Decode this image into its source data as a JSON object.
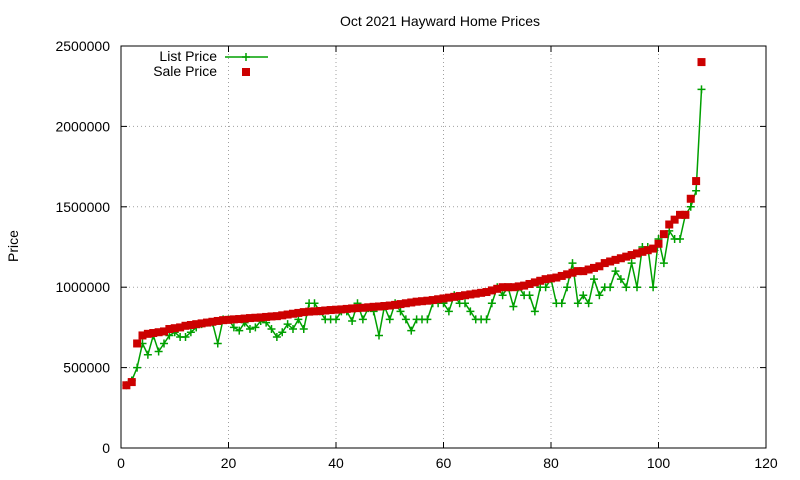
{
  "chart_data": {
    "type": "scatter",
    "title": "Oct 2021 Hayward Home Prices",
    "xlabel": "",
    "ylabel": "Price",
    "xlim": [
      0,
      120
    ],
    "ylim": [
      0,
      2500000
    ],
    "x_ticks": [
      0,
      20,
      40,
      60,
      80,
      100,
      120
    ],
    "y_ticks": [
      0,
      500000,
      1000000,
      1500000,
      2000000,
      2500000
    ],
    "x_tick_labels": [
      "0",
      "20",
      "40",
      "60",
      "80",
      "100",
      "120"
    ],
    "y_tick_labels": [
      "0",
      "500000",
      "1000000",
      "1500000",
      "2000000",
      "2500000"
    ],
    "grid": true,
    "legend_position": "top-left",
    "series": [
      {
        "name": "List Price",
        "style": "linespoints",
        "marker": "plus",
        "color": "#00a000",
        "x": [
          1,
          2,
          3,
          4,
          5,
          6,
          7,
          8,
          9,
          10,
          11,
          12,
          13,
          14,
          15,
          16,
          17,
          18,
          19,
          20,
          21,
          22,
          23,
          24,
          25,
          26,
          27,
          28,
          29,
          30,
          31,
          32,
          33,
          34,
          35,
          36,
          37,
          38,
          39,
          40,
          41,
          42,
          43,
          44,
          45,
          46,
          47,
          48,
          49,
          50,
          51,
          52,
          53,
          54,
          55,
          56,
          57,
          58,
          59,
          60,
          61,
          62,
          63,
          64,
          65,
          66,
          67,
          68,
          69,
          70,
          71,
          72,
          73,
          74,
          75,
          76,
          77,
          78,
          79,
          80,
          81,
          82,
          83,
          84,
          85,
          86,
          87,
          88,
          89,
          90,
          91,
          92,
          93,
          94,
          95,
          96,
          97,
          98,
          99,
          100,
          101,
          102,
          103,
          104,
          105,
          106,
          107,
          108
        ],
        "y": [
          390000,
          420000,
          500000,
          650000,
          580000,
          700000,
          600000,
          650000,
          700000,
          720000,
          690000,
          690000,
          720000,
          750000,
          770000,
          780000,
          780000,
          650000,
          800000,
          800000,
          750000,
          730000,
          780000,
          740000,
          750000,
          790000,
          780000,
          740000,
          690000,
          720000,
          770000,
          740000,
          800000,
          740000,
          900000,
          900000,
          850000,
          800000,
          800000,
          800000,
          850000,
          850000,
          790000,
          900000,
          800000,
          870000,
          850000,
          700000,
          880000,
          800000,
          900000,
          850000,
          800000,
          730000,
          800000,
          800000,
          800000,
          900000,
          900000,
          900000,
          850000,
          950000,
          900000,
          900000,
          850000,
          800000,
          800000,
          800000,
          900000,
          1000000,
          950000,
          1000000,
          880000,
          1000000,
          950000,
          950000,
          850000,
          1000000,
          1000000,
          1050000,
          900000,
          900000,
          1000000,
          1150000,
          900000,
          950000,
          900000,
          1050000,
          950000,
          1000000,
          1000000,
          1100000,
          1050000,
          1000000,
          1150000,
          1000000,
          1250000,
          1250000,
          1000000,
          1300000,
          1150000,
          1350000,
          1300000,
          1300000,
          1450000,
          1500000,
          1600000,
          2230000
        ]
      },
      {
        "name": "Sale Price",
        "style": "points",
        "marker": "filled-square",
        "color": "#cc0000",
        "x": [
          1,
          2,
          3,
          4,
          5,
          6,
          7,
          8,
          9,
          10,
          11,
          12,
          13,
          14,
          15,
          16,
          17,
          18,
          19,
          20,
          21,
          22,
          23,
          24,
          25,
          26,
          27,
          28,
          29,
          30,
          31,
          32,
          33,
          34,
          35,
          36,
          37,
          38,
          39,
          40,
          41,
          42,
          43,
          44,
          45,
          46,
          47,
          48,
          49,
          50,
          51,
          52,
          53,
          54,
          55,
          56,
          57,
          58,
          59,
          60,
          61,
          62,
          63,
          64,
          65,
          66,
          67,
          68,
          69,
          70,
          71,
          72,
          73,
          74,
          75,
          76,
          77,
          78,
          79,
          80,
          81,
          82,
          83,
          84,
          85,
          86,
          87,
          88,
          89,
          90,
          91,
          92,
          93,
          94,
          95,
          96,
          97,
          98,
          99,
          100,
          101,
          102,
          103,
          104,
          105,
          106,
          107,
          108
        ],
        "y": [
          390000,
          410000,
          650000,
          700000,
          710000,
          715000,
          720000,
          725000,
          740000,
          745000,
          750000,
          760000,
          765000,
          770000,
          775000,
          780000,
          785000,
          790000,
          795000,
          797000,
          800000,
          802000,
          805000,
          808000,
          810000,
          812000,
          815000,
          818000,
          820000,
          825000,
          830000,
          835000,
          840000,
          845000,
          848000,
          850000,
          852000,
          855000,
          858000,
          860000,
          862000,
          865000,
          868000,
          870000,
          872000,
          875000,
          878000,
          880000,
          883000,
          886000,
          890000,
          895000,
          900000,
          905000,
          910000,
          913000,
          916000,
          920000,
          925000,
          930000,
          935000,
          940000,
          945000,
          950000,
          955000,
          960000,
          965000,
          970000,
          980000,
          990000,
          1000000,
          1000000,
          1000000,
          1005000,
          1010000,
          1020000,
          1030000,
          1040000,
          1050000,
          1055000,
          1060000,
          1070000,
          1080000,
          1090000,
          1100000,
          1100000,
          1110000,
          1120000,
          1130000,
          1150000,
          1160000,
          1170000,
          1180000,
          1190000,
          1200000,
          1210000,
          1220000,
          1230000,
          1240000,
          1270000,
          1330000,
          1390000,
          1420000,
          1450000,
          1450000,
          1550000,
          1660000,
          2400000
        ]
      }
    ]
  }
}
